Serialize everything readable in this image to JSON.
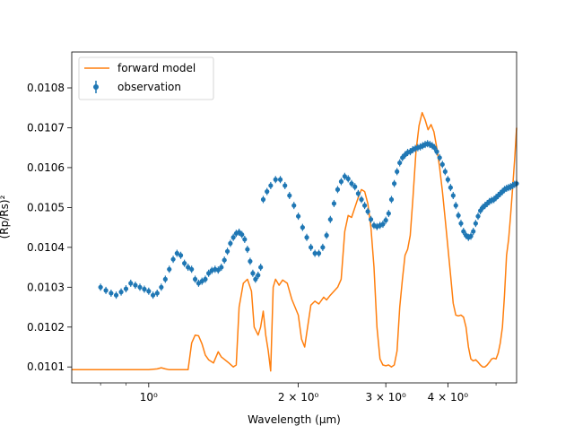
{
  "colors": {
    "observation": "#1f77b4",
    "model": "#ff7f0e",
    "axes": "#000000",
    "background": "#ffffff"
  },
  "chart_data": {
    "type": "line",
    "title": "",
    "xlabel": "Wavelength (μm)",
    "ylabel": "(Rp/Rs)²",
    "xscale": "log",
    "xlim": [
      0.7,
      5.5
    ],
    "ylim": [
      0.01006,
      0.01089
    ],
    "grid": false,
    "legend_position": "upper-left",
    "xticks": [
      {
        "value": 1.0,
        "label": "10⁰"
      },
      {
        "value": 2.0,
        "label": "2 × 10⁰"
      },
      {
        "value": 3.0,
        "label": "3 × 10⁰"
      },
      {
        "value": 4.0,
        "label": "4 × 10⁰"
      }
    ],
    "yticks": [
      {
        "value": 0.0101,
        "label": "0.0101"
      },
      {
        "value": 0.0102,
        "label": "0.0102"
      },
      {
        "value": 0.0103,
        "label": "0.0103"
      },
      {
        "value": 0.0104,
        "label": "0.0104"
      },
      {
        "value": 0.0105,
        "label": "0.0105"
      },
      {
        "value": 0.0106,
        "label": "0.0106"
      },
      {
        "value": 0.0107,
        "label": "0.0107"
      },
      {
        "value": 0.0108,
        "label": "0.0108"
      }
    ],
    "series": [
      {
        "name": "forward model",
        "style": "line",
        "points": [
          [
            0.7,
            0.010093
          ],
          [
            0.8,
            0.010093
          ],
          [
            0.9,
            0.010093
          ],
          [
            1.0,
            0.010093
          ],
          [
            1.04,
            0.010095
          ],
          [
            1.06,
            0.010098
          ],
          [
            1.08,
            0.010095
          ],
          [
            1.1,
            0.010093
          ],
          [
            1.2,
            0.010093
          ],
          [
            1.22,
            0.01016
          ],
          [
            1.24,
            0.01018
          ],
          [
            1.26,
            0.010178
          ],
          [
            1.28,
            0.010158
          ],
          [
            1.3,
            0.01013
          ],
          [
            1.32,
            0.010118
          ],
          [
            1.35,
            0.01011
          ],
          [
            1.38,
            0.010138
          ],
          [
            1.4,
            0.010125
          ],
          [
            1.45,
            0.01011
          ],
          [
            1.48,
            0.0101
          ],
          [
            1.5,
            0.010105
          ],
          [
            1.52,
            0.01025
          ],
          [
            1.55,
            0.01031
          ],
          [
            1.58,
            0.01032
          ],
          [
            1.61,
            0.01029
          ],
          [
            1.63,
            0.0102
          ],
          [
            1.66,
            0.01018
          ],
          [
            1.68,
            0.0102
          ],
          [
            1.7,
            0.01024
          ],
          [
            1.72,
            0.01018
          ],
          [
            1.74,
            0.01014
          ],
          [
            1.76,
            0.01009
          ],
          [
            1.78,
            0.0103
          ],
          [
            1.8,
            0.01032
          ],
          [
            1.83,
            0.010305
          ],
          [
            1.86,
            0.010318
          ],
          [
            1.9,
            0.01031
          ],
          [
            1.94,
            0.01027
          ],
          [
            2.0,
            0.01023
          ],
          [
            2.03,
            0.01017
          ],
          [
            2.06,
            0.01015
          ],
          [
            2.08,
            0.010185
          ],
          [
            2.12,
            0.010255
          ],
          [
            2.16,
            0.010265
          ],
          [
            2.2,
            0.010258
          ],
          [
            2.25,
            0.010275
          ],
          [
            2.28,
            0.010268
          ],
          [
            2.32,
            0.01028
          ],
          [
            2.36,
            0.01029
          ],
          [
            2.4,
            0.0103
          ],
          [
            2.44,
            0.01032
          ],
          [
            2.48,
            0.01044
          ],
          [
            2.52,
            0.01048
          ],
          [
            2.56,
            0.010475
          ],
          [
            2.6,
            0.0105
          ],
          [
            2.64,
            0.010525
          ],
          [
            2.68,
            0.010545
          ],
          [
            2.72,
            0.01054
          ],
          [
            2.76,
            0.01051
          ],
          [
            2.8,
            0.01045
          ],
          [
            2.84,
            0.01035
          ],
          [
            2.88,
            0.0102
          ],
          [
            2.92,
            0.01012
          ],
          [
            2.96,
            0.010105
          ],
          [
            3.0,
            0.010103
          ],
          [
            3.04,
            0.010105
          ],
          [
            3.08,
            0.0101
          ],
          [
            3.12,
            0.010105
          ],
          [
            3.16,
            0.01014
          ],
          [
            3.2,
            0.01025
          ],
          [
            3.24,
            0.01032
          ],
          [
            3.28,
            0.01038
          ],
          [
            3.32,
            0.010395
          ],
          [
            3.36,
            0.01043
          ],
          [
            3.4,
            0.01052
          ],
          [
            3.45,
            0.01064
          ],
          [
            3.5,
            0.010705
          ],
          [
            3.55,
            0.010738
          ],
          [
            3.6,
            0.01072
          ],
          [
            3.65,
            0.010695
          ],
          [
            3.7,
            0.010708
          ],
          [
            3.75,
            0.01069
          ],
          [
            3.8,
            0.01065
          ],
          [
            3.85,
            0.0106
          ],
          [
            3.9,
            0.01054
          ],
          [
            3.95,
            0.01047
          ],
          [
            4.0,
            0.0104
          ],
          [
            4.05,
            0.01033
          ],
          [
            4.1,
            0.01026
          ],
          [
            4.15,
            0.01023
          ],
          [
            4.2,
            0.010228
          ],
          [
            4.25,
            0.01023
          ],
          [
            4.3,
            0.010225
          ],
          [
            4.35,
            0.0102
          ],
          [
            4.4,
            0.01015
          ],
          [
            4.45,
            0.01012
          ],
          [
            4.5,
            0.010115
          ],
          [
            4.55,
            0.010118
          ],
          [
            4.6,
            0.010112
          ],
          [
            4.65,
            0.010105
          ],
          [
            4.7,
            0.0101
          ],
          [
            4.75,
            0.0101
          ],
          [
            4.8,
            0.010105
          ],
          [
            4.85,
            0.010112
          ],
          [
            4.9,
            0.01012
          ],
          [
            4.95,
            0.010122
          ],
          [
            5.0,
            0.01012
          ],
          [
            5.05,
            0.010135
          ],
          [
            5.1,
            0.01016
          ],
          [
            5.15,
            0.0102
          ],
          [
            5.2,
            0.01028
          ],
          [
            5.25,
            0.01038
          ],
          [
            5.3,
            0.01042
          ],
          [
            5.35,
            0.01048
          ],
          [
            5.4,
            0.01055
          ],
          [
            5.45,
            0.01062
          ],
          [
            5.5,
            0.0107
          ]
        ]
      },
      {
        "name": "observation",
        "style": "errorbar",
        "yerr": 9e-06,
        "points": [
          [
            0.8,
            0.0103
          ],
          [
            0.82,
            0.010292
          ],
          [
            0.84,
            0.010285
          ],
          [
            0.86,
            0.01028
          ],
          [
            0.88,
            0.010288
          ],
          [
            0.9,
            0.010296
          ],
          [
            0.92,
            0.01031
          ],
          [
            0.94,
            0.010305
          ],
          [
            0.96,
            0.0103
          ],
          [
            0.98,
            0.010295
          ],
          [
            1.0,
            0.01029
          ],
          [
            1.02,
            0.01028
          ],
          [
            1.04,
            0.010285
          ],
          [
            1.06,
            0.0103
          ],
          [
            1.08,
            0.01032
          ],
          [
            1.1,
            0.010345
          ],
          [
            1.12,
            0.01037
          ],
          [
            1.14,
            0.010385
          ],
          [
            1.16,
            0.01038
          ],
          [
            1.18,
            0.01036
          ],
          [
            1.2,
            0.01035
          ],
          [
            1.22,
            0.010345
          ],
          [
            1.24,
            0.01032
          ],
          [
            1.26,
            0.01031
          ],
          [
            1.28,
            0.010315
          ],
          [
            1.3,
            0.01032
          ],
          [
            1.32,
            0.010335
          ],
          [
            1.34,
            0.010342
          ],
          [
            1.36,
            0.010345
          ],
          [
            1.38,
            0.010343
          ],
          [
            1.4,
            0.01035
          ],
          [
            1.42,
            0.010368
          ],
          [
            1.44,
            0.01039
          ],
          [
            1.46,
            0.01041
          ],
          [
            1.48,
            0.010425
          ],
          [
            1.5,
            0.010435
          ],
          [
            1.52,
            0.010438
          ],
          [
            1.54,
            0.010432
          ],
          [
            1.56,
            0.01042
          ],
          [
            1.58,
            0.010395
          ],
          [
            1.6,
            0.010365
          ],
          [
            1.62,
            0.010335
          ],
          [
            1.64,
            0.01032
          ],
          [
            1.66,
            0.01033
          ],
          [
            1.68,
            0.01035
          ],
          [
            1.7,
            0.01052
          ],
          [
            1.73,
            0.01054
          ],
          [
            1.76,
            0.010555
          ],
          [
            1.8,
            0.01057
          ],
          [
            1.84,
            0.01057
          ],
          [
            1.88,
            0.010555
          ],
          [
            1.92,
            0.01053
          ],
          [
            1.96,
            0.010505
          ],
          [
            2.0,
            0.010478
          ],
          [
            2.04,
            0.01045
          ],
          [
            2.08,
            0.010425
          ],
          [
            2.12,
            0.0104
          ],
          [
            2.16,
            0.010385
          ],
          [
            2.2,
            0.010385
          ],
          [
            2.24,
            0.0104
          ],
          [
            2.28,
            0.01043
          ],
          [
            2.32,
            0.01047
          ],
          [
            2.36,
            0.01051
          ],
          [
            2.4,
            0.010545
          ],
          [
            2.44,
            0.010565
          ],
          [
            2.48,
            0.010578
          ],
          [
            2.52,
            0.010572
          ],
          [
            2.56,
            0.01056
          ],
          [
            2.6,
            0.010552
          ],
          [
            2.64,
            0.010535
          ],
          [
            2.68,
            0.01052
          ],
          [
            2.72,
            0.010505
          ],
          [
            2.76,
            0.01049
          ],
          [
            2.8,
            0.01047
          ],
          [
            2.84,
            0.010455
          ],
          [
            2.88,
            0.010452
          ],
          [
            2.92,
            0.010455
          ],
          [
            2.96,
            0.010458
          ],
          [
            3.0,
            0.010468
          ],
          [
            3.04,
            0.010485
          ],
          [
            3.08,
            0.01052
          ],
          [
            3.12,
            0.01056
          ],
          [
            3.16,
            0.01059
          ],
          [
            3.2,
            0.010612
          ],
          [
            3.24,
            0.010625
          ],
          [
            3.28,
            0.010632
          ],
          [
            3.32,
            0.010638
          ],
          [
            3.36,
            0.01064
          ],
          [
            3.4,
            0.010645
          ],
          [
            3.44,
            0.010648
          ],
          [
            3.48,
            0.01065
          ],
          [
            3.52,
            0.010652
          ],
          [
            3.56,
            0.010655
          ],
          [
            3.6,
            0.010658
          ],
          [
            3.64,
            0.01066
          ],
          [
            3.68,
            0.010658
          ],
          [
            3.72,
            0.010655
          ],
          [
            3.76,
            0.01065
          ],
          [
            3.8,
            0.01064
          ],
          [
            3.85,
            0.010625
          ],
          [
            3.9,
            0.010608
          ],
          [
            3.95,
            0.01059
          ],
          [
            4.0,
            0.01057
          ],
          [
            4.05,
            0.01055
          ],
          [
            4.1,
            0.01053
          ],
          [
            4.15,
            0.010505
          ],
          [
            4.2,
            0.01048
          ],
          [
            4.25,
            0.01046
          ],
          [
            4.3,
            0.01044
          ],
          [
            4.35,
            0.01043
          ],
          [
            4.4,
            0.010425
          ],
          [
            4.45,
            0.010428
          ],
          [
            4.5,
            0.01044
          ],
          [
            4.55,
            0.01046
          ],
          [
            4.6,
            0.010478
          ],
          [
            4.65,
            0.010492
          ],
          [
            4.7,
            0.0105
          ],
          [
            4.75,
            0.010505
          ],
          [
            4.8,
            0.01051
          ],
          [
            4.85,
            0.010515
          ],
          [
            4.9,
            0.010518
          ],
          [
            4.95,
            0.01052
          ],
          [
            5.0,
            0.010525
          ],
          [
            5.05,
            0.01053
          ],
          [
            5.1,
            0.010535
          ],
          [
            5.15,
            0.01054
          ],
          [
            5.2,
            0.010545
          ],
          [
            5.25,
            0.010548
          ],
          [
            5.3,
            0.01055
          ],
          [
            5.35,
            0.010552
          ],
          [
            5.4,
            0.010555
          ],
          [
            5.45,
            0.010558
          ],
          [
            5.5,
            0.01056
          ]
        ]
      }
    ]
  }
}
